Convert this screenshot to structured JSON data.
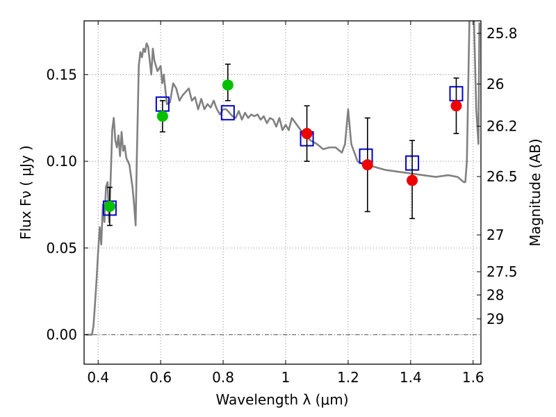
{
  "chart_data": {
    "type": "scatter",
    "xlabel": "Wavelength  λ (μm)",
    "ylabel": "Flux  Fν  ( μJy )",
    "y2label": "Magnitude (AB)",
    "xlim": [
      0.355,
      1.625
    ],
    "ylim": [
      -0.017,
      0.181
    ],
    "grid": true,
    "x_ticks": [
      {
        "value": 0.4,
        "label": "0.4"
      },
      {
        "value": 0.6,
        "label": "0.6"
      },
      {
        "value": 0.8,
        "label": "0.8"
      },
      {
        "value": 1.0,
        "label": "1"
      },
      {
        "value": 1.2,
        "label": "1.2"
      },
      {
        "value": 1.4,
        "label": "1.4"
      },
      {
        "value": 1.6,
        "label": "1.6"
      }
    ],
    "y_ticks": [
      {
        "value": 0.0,
        "label": "0.00"
      },
      {
        "value": 0.05,
        "label": "0.05"
      },
      {
        "value": 0.1,
        "label": "0.10"
      },
      {
        "value": 0.15,
        "label": "0.15"
      }
    ],
    "mag_ticks": [
      {
        "value": 25.8,
        "label": "25.8"
      },
      {
        "value": 26.0,
        "label": "26"
      },
      {
        "value": 26.2,
        "label": "26.2"
      },
      {
        "value": 26.5,
        "label": "26.5"
      },
      {
        "value": 27.0,
        "label": "27"
      },
      {
        "value": 27.5,
        "label": "27.5"
      },
      {
        "value": 28.0,
        "label": "28"
      },
      {
        "value": 29.0,
        "label": "29"
      }
    ],
    "mag_zero_point_ujy": 3631000000,
    "zero_line": {
      "y": 0.0,
      "style": "dash-dot"
    },
    "colors": {
      "spectrum": "#808080",
      "model": "#0000cc",
      "green": "#00c000",
      "red": "#ee0000",
      "errorbar": "#000000",
      "grid": "#888888"
    },
    "series": [
      {
        "type": "line",
        "x": [
          0.36,
          0.38,
          0.385,
          0.39,
          0.395,
          0.4,
          0.405,
          0.41,
          0.415,
          0.42,
          0.425,
          0.43,
          0.435,
          0.44,
          0.445,
          0.45,
          0.455,
          0.46,
          0.465,
          0.47,
          0.475,
          0.48,
          0.485,
          0.49,
          0.5,
          0.51,
          0.515,
          0.52,
          0.523,
          0.53,
          0.535,
          0.54,
          0.545,
          0.55,
          0.555,
          0.56,
          0.565,
          0.57,
          0.575,
          0.58,
          0.59,
          0.6,
          0.605,
          0.61,
          0.62,
          0.63,
          0.64,
          0.65,
          0.66,
          0.67,
          0.68,
          0.69,
          0.7,
          0.71,
          0.72,
          0.73,
          0.74,
          0.75,
          0.76,
          0.77,
          0.78,
          0.79,
          0.8,
          0.81,
          0.82,
          0.83,
          0.84,
          0.85,
          0.86,
          0.87,
          0.88,
          0.89,
          0.9,
          0.91,
          0.92,
          0.93,
          0.94,
          0.95,
          0.96,
          0.97,
          0.98,
          0.99,
          1.0,
          1.01,
          1.02,
          1.04,
          1.06,
          1.08,
          1.1,
          1.12,
          1.14,
          1.16,
          1.18,
          1.19,
          1.2,
          1.21,
          1.23,
          1.25,
          1.28,
          1.32,
          1.36,
          1.4,
          1.44,
          1.48,
          1.52,
          1.55,
          1.57,
          1.575,
          1.58,
          1.585,
          1.59,
          1.6,
          1.61,
          1.617,
          1.62
        ],
        "y": [
          0.0,
          0.0,
          0.005,
          0.018,
          0.032,
          0.048,
          0.062,
          0.052,
          0.075,
          0.065,
          0.085,
          0.088,
          0.065,
          0.09,
          0.118,
          0.125,
          0.112,
          0.108,
          0.115,
          0.103,
          0.117,
          0.106,
          0.109,
          0.102,
          0.098,
          0.085,
          0.075,
          0.063,
          0.095,
          0.155,
          0.163,
          0.16,
          0.165,
          0.163,
          0.168,
          0.166,
          0.158,
          0.15,
          0.165,
          0.158,
          0.152,
          0.155,
          0.145,
          0.15,
          0.133,
          0.134,
          0.145,
          0.142,
          0.135,
          0.138,
          0.14,
          0.142,
          0.135,
          0.137,
          0.13,
          0.136,
          0.13,
          0.133,
          0.131,
          0.135,
          0.13,
          0.127,
          0.13,
          0.13,
          0.128,
          0.126,
          0.125,
          0.129,
          0.124,
          0.128,
          0.125,
          0.127,
          0.126,
          0.127,
          0.124,
          0.126,
          0.122,
          0.125,
          0.124,
          0.12,
          0.125,
          0.118,
          0.121,
          0.118,
          0.125,
          0.12,
          0.115,
          0.112,
          0.11,
          0.107,
          0.108,
          0.108,
          0.105,
          0.11,
          0.13,
          0.11,
          0.1,
          0.098,
          0.097,
          0.095,
          0.094,
          0.093,
          0.092,
          0.091,
          0.092,
          0.091,
          0.088,
          0.088,
          0.1,
          0.15,
          0.2,
          0.2,
          0.13,
          0.11,
          0.18
        ]
      },
      {
        "type": "scatter",
        "marker": "square",
        "x": [
          0.437,
          0.606,
          0.815,
          1.068,
          1.257,
          1.405,
          1.546
        ],
        "y": [
          0.073,
          0.133,
          0.128,
          0.113,
          0.103,
          0.099,
          0.139
        ]
      },
      {
        "type": "scatter",
        "marker": "circle",
        "x": [
          0.437,
          0.606,
          0.815
        ],
        "y": [
          0.074,
          0.126,
          0.144
        ],
        "yerr_low": [
          0.011,
          0.009,
          0.009
        ],
        "yerr_high": [
          0.011,
          0.009,
          0.012
        ]
      },
      {
        "type": "scatter",
        "marker": "circle",
        "x": [
          1.068,
          1.262,
          1.405,
          1.546
        ],
        "y": [
          0.116,
          0.098,
          0.089,
          0.132
        ],
        "yerr_low": [
          0.016,
          0.027,
          0.022,
          0.016
        ],
        "yerr_high": [
          0.016,
          0.027,
          0.023,
          0.016
        ]
      }
    ]
  }
}
